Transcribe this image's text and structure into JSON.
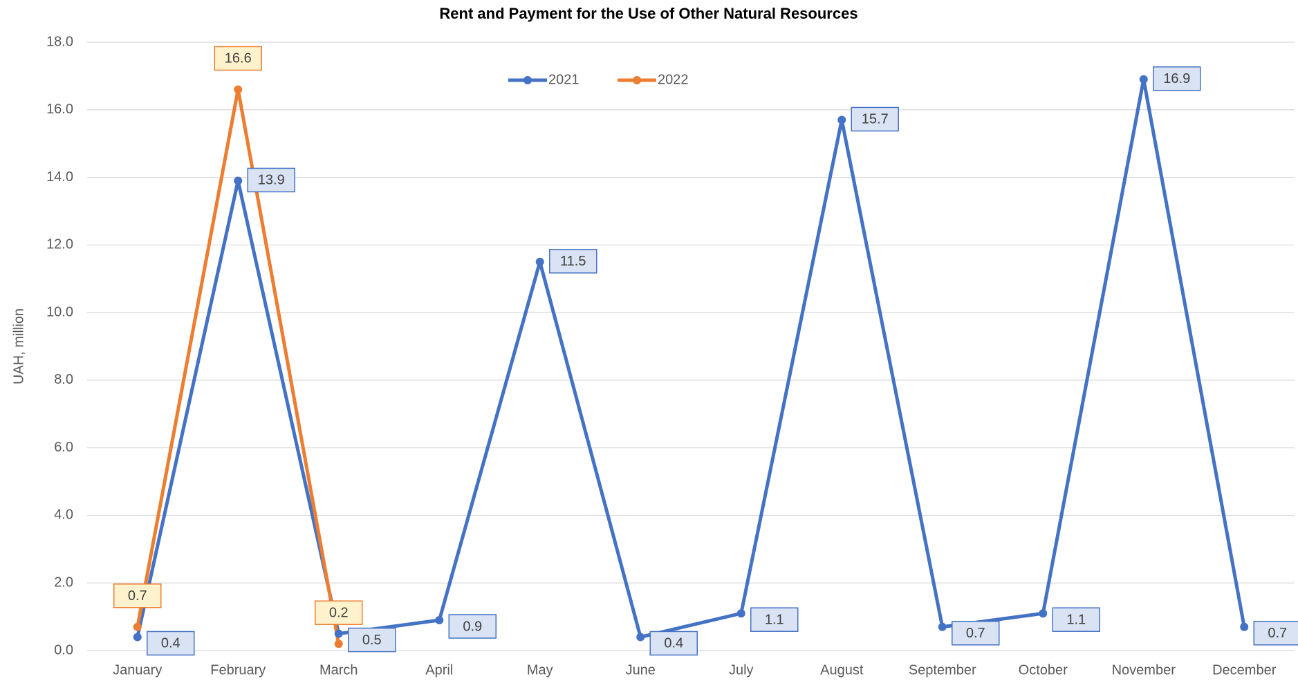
{
  "chart_data": {
    "type": "line",
    "title": "Rent and Payment for the Use of Other Natural Resources",
    "y_label": "UAH, million",
    "categories": [
      "January",
      "February",
      "March",
      "April",
      "May",
      "June",
      "July",
      "August",
      "September",
      "October",
      "November",
      "December"
    ],
    "series": [
      {
        "name": "2021",
        "color": "#4472c4",
        "label_fill": "#dae3f3",
        "values": [
          0.4,
          13.9,
          0.5,
          0.9,
          11.5,
          0.4,
          1.1,
          15.7,
          0.7,
          1.1,
          16.9,
          0.7
        ]
      },
      {
        "name": "2022",
        "color": "#ed7d31",
        "label_fill": "#fff2cc",
        "values": [
          0.7,
          16.6,
          0.2,
          null,
          null,
          null,
          null,
          null,
          null,
          null,
          null,
          null
        ]
      }
    ],
    "ylim": [
      0,
      18
    ],
    "yticks": [
      {
        "value": 0,
        "label": "0.0"
      },
      {
        "value": 2,
        "label": "2.0"
      },
      {
        "value": 4,
        "label": "4.0"
      },
      {
        "value": 6,
        "label": "6.0"
      },
      {
        "value": 8,
        "label": "8.0"
      },
      {
        "value": 10,
        "label": "10.0"
      },
      {
        "value": 12,
        "label": "12.0"
      },
      {
        "value": 14,
        "label": "14.0"
      },
      {
        "value": 16,
        "label": "16.0"
      },
      {
        "value": 18,
        "label": "18.0"
      }
    ],
    "grid": true,
    "legend": "top"
  }
}
